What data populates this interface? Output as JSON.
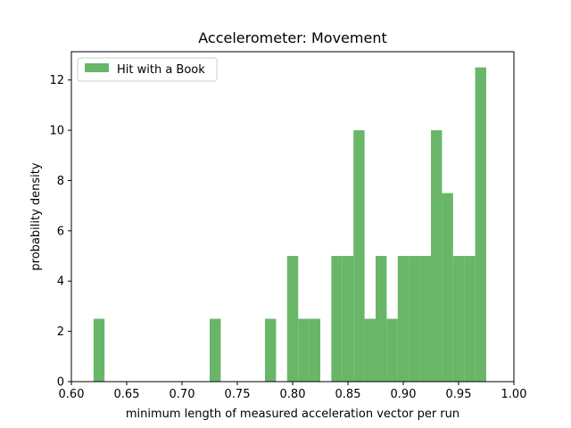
{
  "chart_data": {
    "type": "bar",
    "title": "Accelerometer: Movement",
    "xlabel": "minimum length of measured acceleration vector per run",
    "ylabel": "probability density",
    "xlim": [
      0.6,
      1.0
    ],
    "ylim": [
      0,
      13.125
    ],
    "xticks": [
      "0.60",
      "0.65",
      "0.70",
      "0.75",
      "0.80",
      "0.85",
      "0.90",
      "0.95",
      "1.00"
    ],
    "yticks": [
      "0",
      "2",
      "4",
      "6",
      "8",
      "10",
      "12"
    ],
    "grid": false,
    "legend_position": "top-left",
    "series": [
      {
        "name": "Hit with a Book",
        "color": "#69b669",
        "bins": [
          {
            "x0": 0.62,
            "x1": 0.63,
            "value": 2.5
          },
          {
            "x0": 0.725,
            "x1": 0.735,
            "value": 2.5
          },
          {
            "x0": 0.775,
            "x1": 0.785,
            "value": 2.5
          },
          {
            "x0": 0.795,
            "x1": 0.805,
            "value": 5.0
          },
          {
            "x0": 0.805,
            "x1": 0.815,
            "value": 2.5
          },
          {
            "x0": 0.815,
            "x1": 0.825,
            "value": 2.5
          },
          {
            "x0": 0.835,
            "x1": 0.845,
            "value": 5.0
          },
          {
            "x0": 0.845,
            "x1": 0.855,
            "value": 5.0
          },
          {
            "x0": 0.855,
            "x1": 0.865,
            "value": 10.0
          },
          {
            "x0": 0.865,
            "x1": 0.875,
            "value": 2.5
          },
          {
            "x0": 0.875,
            "x1": 0.885,
            "value": 5.0
          },
          {
            "x0": 0.885,
            "x1": 0.895,
            "value": 2.5
          },
          {
            "x0": 0.895,
            "x1": 0.905,
            "value": 5.0
          },
          {
            "x0": 0.905,
            "x1": 0.915,
            "value": 5.0
          },
          {
            "x0": 0.915,
            "x1": 0.925,
            "value": 5.0
          },
          {
            "x0": 0.925,
            "x1": 0.935,
            "value": 10.0
          },
          {
            "x0": 0.935,
            "x1": 0.945,
            "value": 7.5
          },
          {
            "x0": 0.945,
            "x1": 0.955,
            "value": 5.0
          },
          {
            "x0": 0.955,
            "x1": 0.965,
            "value": 5.0
          },
          {
            "x0": 0.965,
            "x1": 0.975,
            "value": 12.5
          }
        ]
      }
    ]
  }
}
